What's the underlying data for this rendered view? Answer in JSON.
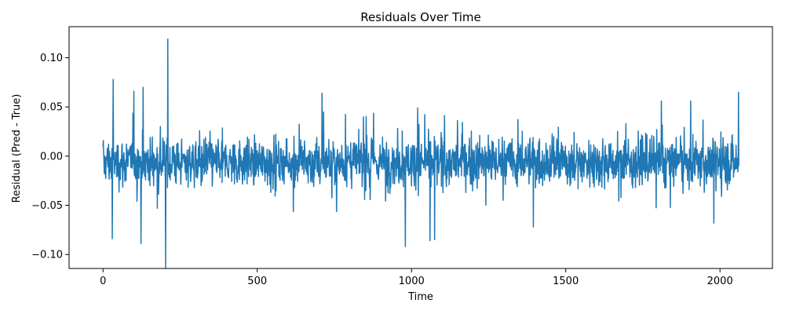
{
  "chart_data": {
    "type": "line",
    "title": "Residuals Over Time",
    "xlabel": "Time",
    "ylabel": "Residual (Pred - True)",
    "xlim": [
      -110,
      2170
    ],
    "ylim": [
      -0.1142,
      0.1316
    ],
    "xticks": [
      0,
      500,
      1000,
      1500,
      2000
    ],
    "xtick_labels": [
      "0",
      "500",
      "1000",
      "1500",
      "2000"
    ],
    "yticks": [
      -0.1,
      -0.05,
      0.0,
      0.05,
      0.1
    ],
    "ytick_labels": [
      "−0.10",
      "−0.05",
      "0.00",
      "0.05",
      "0.10"
    ],
    "grid": false,
    "series": [
      {
        "color": "#1f77b4",
        "n_points": 2062,
        "x_range": [
          0,
          2061
        ],
        "typical_range": [
          -0.05,
          0.04
        ],
        "extremes": [
          {
            "x": 210,
            "y": 0.119
          },
          {
            "x": 203,
            "y": -0.114
          },
          {
            "x": 33,
            "y": 0.078
          },
          {
            "x": 100,
            "y": 0.066
          },
          {
            "x": 130,
            "y": 0.07
          },
          {
            "x": 123,
            "y": -0.089
          },
          {
            "x": 30,
            "y": -0.084
          },
          {
            "x": 710,
            "y": 0.064
          },
          {
            "x": 1810,
            "y": 0.056
          },
          {
            "x": 2060,
            "y": 0.065
          },
          {
            "x": 980,
            "y": -0.092
          },
          {
            "x": 1060,
            "y": -0.086
          },
          {
            "x": 1075,
            "y": -0.085
          },
          {
            "x": 1020,
            "y": 0.049
          },
          {
            "x": 1905,
            "y": 0.056
          },
          {
            "x": 1395,
            "y": -0.072
          },
          {
            "x": 1980,
            "y": -0.068
          }
        ]
      }
    ]
  }
}
